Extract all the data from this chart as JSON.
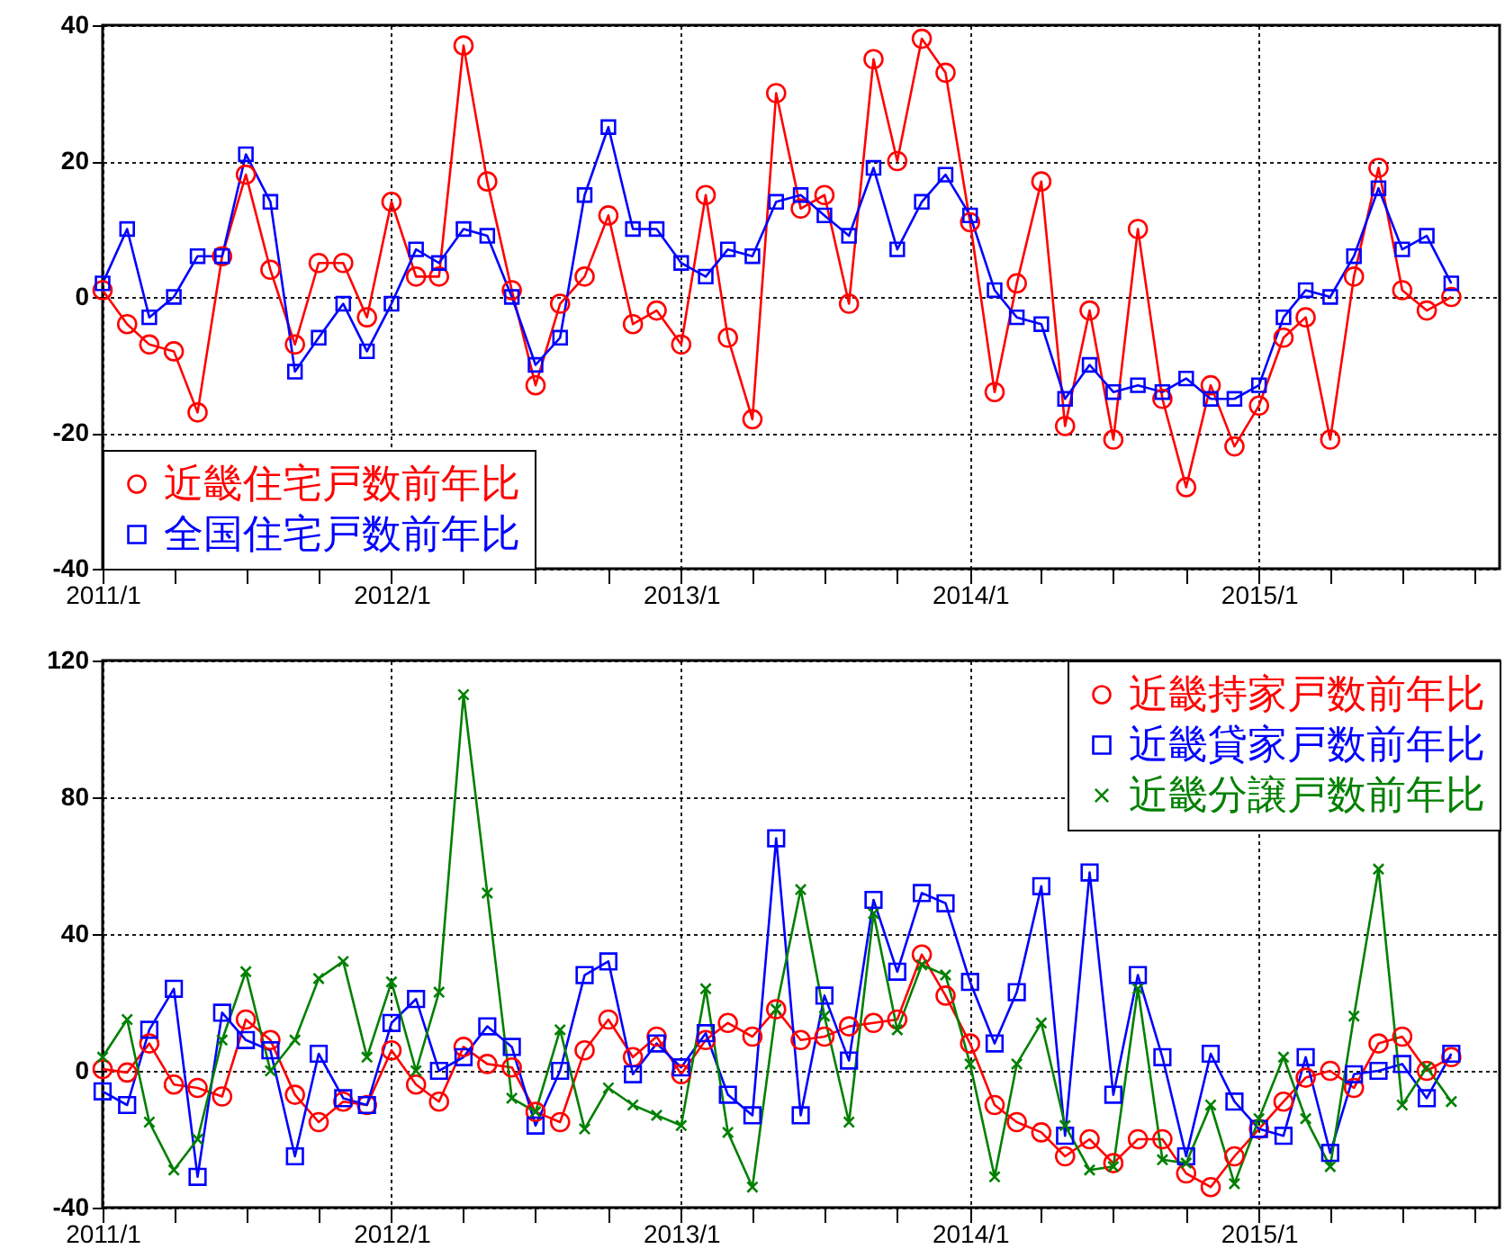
{
  "chart_data": [
    {
      "type": "line",
      "legend": "bottom left",
      "grid": true,
      "x": [
        "2011-01",
        "2011-02",
        "2011-03",
        "2011-04",
        "2011-05",
        "2011-06",
        "2011-07",
        "2011-08",
        "2011-09",
        "2011-10",
        "2011-11",
        "2011-12",
        "2012-01",
        "2012-02",
        "2012-03",
        "2012-04",
        "2012-05",
        "2012-06",
        "2012-07",
        "2012-08",
        "2012-09",
        "2012-10",
        "2012-11",
        "2012-12",
        "2013-01",
        "2013-02",
        "2013-03",
        "2013-04",
        "2013-05",
        "2013-06",
        "2013-07",
        "2013-08",
        "2013-09",
        "2013-10",
        "2013-11",
        "2013-12",
        "2014-01",
        "2014-02",
        "2014-03",
        "2014-04",
        "2014-05",
        "2014-06",
        "2014-07",
        "2014-08",
        "2014-09",
        "2014-10",
        "2014-11",
        "2014-12",
        "2015-01",
        "2015-02",
        "2015-03",
        "2015-04",
        "2015-05",
        "2015-06",
        "2015-07",
        "2015-08",
        "2015-09"
      ],
      "xlim": [
        "2011-01",
        "2015-11"
      ],
      "xticks": [
        {
          "value": "2011-01",
          "label": "2011/1"
        },
        {
          "value": "2011-04",
          "label": null
        },
        {
          "value": "2011-07",
          "label": null
        },
        {
          "value": "2011-10",
          "label": null
        },
        {
          "value": "2012-01",
          "label": "2012/1"
        },
        {
          "value": "2012-04",
          "label": null
        },
        {
          "value": "2012-07",
          "label": null
        },
        {
          "value": "2012-10",
          "label": null
        },
        {
          "value": "2013-01",
          "label": "2013/1"
        },
        {
          "value": "2013-04",
          "label": null
        },
        {
          "value": "2013-07",
          "label": null
        },
        {
          "value": "2013-10",
          "label": null
        },
        {
          "value": "2014-01",
          "label": "2014/1"
        },
        {
          "value": "2014-04",
          "label": null
        },
        {
          "value": "2014-07",
          "label": null
        },
        {
          "value": "2014-10",
          "label": null
        },
        {
          "value": "2015-01",
          "label": "2015/1"
        },
        {
          "value": "2015-04",
          "label": null
        },
        {
          "value": "2015-07",
          "label": null
        },
        {
          "value": "2015-10",
          "label": null
        }
      ],
      "ylim": [
        -40,
        40
      ],
      "yticks": [
        -40,
        -20,
        0,
        20,
        40
      ],
      "series": [
        {
          "name": "近畿住宅戸数前年比",
          "color": "#ff0000",
          "marker": "circle",
          "values": [
            1,
            -4,
            -7,
            -8,
            -17,
            6,
            18,
            4,
            -7,
            5,
            5,
            -3,
            14,
            3,
            3,
            37,
            17,
            1,
            -13,
            -1,
            3,
            12,
            -4,
            -2,
            -7,
            15,
            -6,
            -18,
            30,
            13,
            15,
            -1,
            35,
            20,
            38,
            33,
            11,
            -14,
            2,
            17,
            -19,
            -2,
            -21,
            10,
            -15,
            -28,
            -13,
            -22,
            -16,
            -6,
            -3,
            -21,
            3,
            19,
            1,
            -2,
            0
          ]
        },
        {
          "name": "全国住宅戸数前年比",
          "color": "#0000ff",
          "marker": "square",
          "values": [
            2,
            10,
            -3,
            0,
            6,
            6,
            21,
            14,
            -11,
            -6,
            -1,
            -8,
            -1,
            7,
            5,
            10,
            9,
            0,
            -10,
            -6,
            15,
            25,
            10,
            10,
            5,
            3,
            7,
            6,
            14,
            15,
            12,
            9,
            19,
            7,
            14,
            18,
            12,
            1,
            -3,
            -4,
            -15,
            -10,
            -14,
            -13,
            -14,
            -12,
            -15,
            -15,
            -13,
            -3,
            1,
            0,
            6,
            16,
            7,
            9,
            2
          ]
        }
      ]
    },
    {
      "type": "line",
      "legend": "top right",
      "grid": true,
      "x": [
        "2011-01",
        "2011-02",
        "2011-03",
        "2011-04",
        "2011-05",
        "2011-06",
        "2011-07",
        "2011-08",
        "2011-09",
        "2011-10",
        "2011-11",
        "2011-12",
        "2012-01",
        "2012-02",
        "2012-03",
        "2012-04",
        "2012-05",
        "2012-06",
        "2012-07",
        "2012-08",
        "2012-09",
        "2012-10",
        "2012-11",
        "2012-12",
        "2013-01",
        "2013-02",
        "2013-03",
        "2013-04",
        "2013-05",
        "2013-06",
        "2013-07",
        "2013-08",
        "2013-09",
        "2013-10",
        "2013-11",
        "2013-12",
        "2014-01",
        "2014-02",
        "2014-03",
        "2014-04",
        "2014-05",
        "2014-06",
        "2014-07",
        "2014-08",
        "2014-09",
        "2014-10",
        "2014-11",
        "2014-12",
        "2015-01",
        "2015-02",
        "2015-03",
        "2015-04",
        "2015-05",
        "2015-06",
        "2015-07",
        "2015-08",
        "2015-09"
      ],
      "xlim": [
        "2011-01",
        "2015-11"
      ],
      "xticks": [
        {
          "value": "2011-01",
          "label": "2011/1"
        },
        {
          "value": "2011-04",
          "label": null
        },
        {
          "value": "2011-07",
          "label": null
        },
        {
          "value": "2011-10",
          "label": null
        },
        {
          "value": "2012-01",
          "label": "2012/1"
        },
        {
          "value": "2012-04",
          "label": null
        },
        {
          "value": "2012-07",
          "label": null
        },
        {
          "value": "2012-10",
          "label": null
        },
        {
          "value": "2013-01",
          "label": "2013/1"
        },
        {
          "value": "2013-04",
          "label": null
        },
        {
          "value": "2013-07",
          "label": null
        },
        {
          "value": "2013-10",
          "label": null
        },
        {
          "value": "2014-01",
          "label": "2014/1"
        },
        {
          "value": "2014-04",
          "label": null
        },
        {
          "value": "2014-07",
          "label": null
        },
        {
          "value": "2014-10",
          "label": null
        },
        {
          "value": "2015-01",
          "label": "2015/1"
        },
        {
          "value": "2015-04",
          "label": null
        },
        {
          "value": "2015-07",
          "label": null
        },
        {
          "value": "2015-10",
          "label": null
        }
      ],
      "ylim": [
        -40,
        120
      ],
      "yticks": [
        -40,
        0,
        40,
        80,
        120
      ],
      "series": [
        {
          "name": "近畿持家戸数前年比",
          "color": "#ff0000",
          "marker": "circle",
          "values": [
            0.5,
            -0.5,
            8,
            -4,
            -5,
            -7.5,
            15,
            9,
            -7,
            -15,
            -9,
            -10,
            6,
            -4,
            -9,
            7,
            2,
            1,
            -12,
            -15,
            6,
            15,
            4,
            10,
            -1,
            9,
            14,
            10,
            18,
            9,
            10,
            13,
            14,
            15,
            34,
            22,
            8,
            -10,
            -15,
            -18,
            -25,
            -20,
            -27,
            -20,
            -20,
            -30,
            -34,
            -25,
            -17,
            -9,
            -2,
            0,
            -5,
            8,
            10,
            0,
            4
          ]
        },
        {
          "name": "近畿貸家戸数前年比",
          "color": "#0000ff",
          "marker": "square",
          "values": [
            -6,
            -10,
            12,
            24,
            -31,
            17,
            9,
            6,
            -25,
            5,
            -8,
            -10,
            14,
            21,
            0,
            4,
            13,
            7,
            -16,
            0,
            28,
            32,
            -1,
            8,
            1,
            11,
            -7,
            -13,
            68,
            -13,
            22,
            3,
            50,
            29,
            52,
            49,
            26,
            8,
            23,
            54,
            -19,
            58,
            -7,
            28,
            4,
            -25,
            5,
            -9,
            -17,
            -19,
            4,
            -24,
            -1,
            0,
            2,
            -8,
            5
          ]
        },
        {
          "name": "近畿分譲戸数前年比",
          "color": "#008000",
          "marker": "cross",
          "values": [
            4,
            15,
            -15,
            -29,
            -20,
            9,
            29,
            0,
            9,
            27,
            32,
            4,
            26,
            0,
            23,
            110,
            52,
            -8,
            -12,
            12,
            -17,
            -5,
            -10,
            -13,
            -16,
            24,
            -18,
            -34,
            18,
            53,
            16,
            -15,
            46,
            12,
            31,
            28,
            2,
            -31,
            2,
            14,
            -16,
            -29,
            -28,
            24,
            -26,
            -27,
            -10,
            -33,
            -14,
            4,
            -14,
            -28,
            16,
            59,
            -10,
            1,
            -9
          ]
        }
      ]
    }
  ]
}
